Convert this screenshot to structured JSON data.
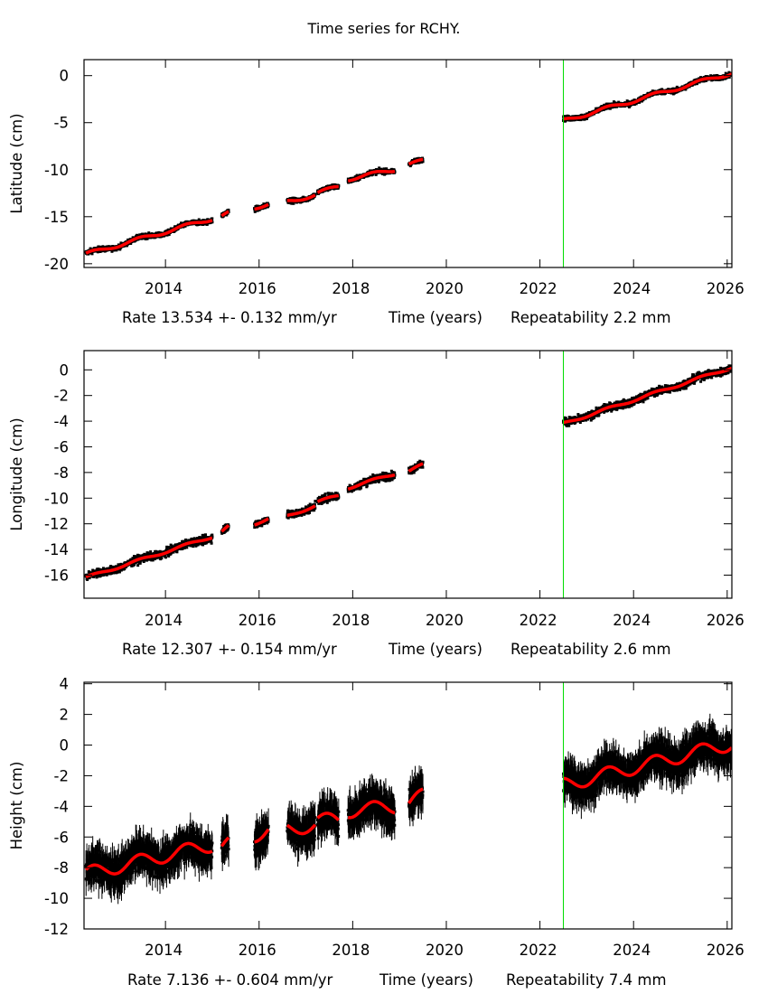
{
  "title": "Time series for RCHY.",
  "colors": {
    "data": "#000000",
    "model": "#ff0000",
    "offset_line": "#00dd00",
    "frame": "#000000"
  },
  "chart_data": [
    {
      "type": "scatter",
      "panel": "latitude",
      "ylabel": "Latitude (cm)",
      "xlabel": "Time (years)",
      "rate_text": "Rate 13.534 +- 0.132 mm/yr",
      "repeat_text": "Repeatability 2.2 mm",
      "xlim": [
        2012.26,
        2026.1
      ],
      "ylim": [
        -20.4,
        1.7
      ],
      "xticks": [
        2014,
        2016,
        2018,
        2020,
        2022,
        2024,
        2026
      ],
      "yticks": [
        0,
        -5,
        -10,
        -15,
        -20
      ],
      "grid": false,
      "offset_epoch": 2022.5,
      "seasonal_amp": 0.2,
      "noise": 0.25,
      "segments": [
        {
          "start": 2012.3,
          "end": 2015.0,
          "y0": -19.0,
          "y1": -15.2
        },
        {
          "start": 2015.2,
          "end": 2015.35,
          "y0": -14.9,
          "y1": -14.6
        },
        {
          "start": 2015.9,
          "end": 2016.2,
          "y0": -14.0,
          "y1": -13.7
        },
        {
          "start": 2016.6,
          "end": 2017.2,
          "y0": -13.4,
          "y1": -12.7
        },
        {
          "start": 2017.25,
          "end": 2017.7,
          "y0": -12.5,
          "y1": -11.8
        },
        {
          "start": 2017.9,
          "end": 2018.9,
          "y0": -11.0,
          "y1": -10.0
        },
        {
          "start": 2019.2,
          "end": 2019.5,
          "y0": -9.4,
          "y1": -9.1
        },
        {
          "start": 2022.5,
          "end": 2026.1,
          "y0": -4.8,
          "y1": 0.3
        }
      ]
    },
    {
      "type": "scatter",
      "panel": "longitude",
      "ylabel": "Longitude (cm)",
      "xlabel": "Time (years)",
      "rate_text": "Rate 12.307 +- 0.154 mm/yr",
      "repeat_text": "Repeatability 2.6 mm",
      "xlim": [
        2012.26,
        2026.1
      ],
      "ylim": [
        -17.8,
        1.5
      ],
      "xticks": [
        2014,
        2016,
        2018,
        2020,
        2022,
        2024,
        2026
      ],
      "yticks": [
        0,
        -2,
        -4,
        -6,
        -8,
        -10,
        -12,
        -14,
        -16
      ],
      "grid": false,
      "offset_epoch": 2022.5,
      "seasonal_amp": 0.1,
      "noise": 0.3,
      "segments": [
        {
          "start": 2012.3,
          "end": 2015.0,
          "y0": -16.2,
          "y1": -13.0
        },
        {
          "start": 2015.2,
          "end": 2015.35,
          "y0": -12.6,
          "y1": -12.2
        },
        {
          "start": 2015.9,
          "end": 2016.2,
          "y0": -12.0,
          "y1": -11.6
        },
        {
          "start": 2016.6,
          "end": 2017.2,
          "y0": -11.4,
          "y1": -10.6
        },
        {
          "start": 2017.25,
          "end": 2017.7,
          "y0": -10.3,
          "y1": -9.8
        },
        {
          "start": 2017.9,
          "end": 2018.9,
          "y0": -9.2,
          "y1": -8.1
        },
        {
          "start": 2019.2,
          "end": 2019.5,
          "y0": -7.9,
          "y1": -7.4
        },
        {
          "start": 2022.5,
          "end": 2026.1,
          "y0": -4.2,
          "y1": 0.2
        }
      ]
    },
    {
      "type": "scatter",
      "panel": "height",
      "ylabel": "Height (cm)",
      "xlabel": "Time (years)",
      "rate_text": "Rate 7.136 +- 0.604 mm/yr",
      "repeat_text": "Repeatability 7.4 mm",
      "xlim": [
        2012.26,
        2026.1
      ],
      "ylim": [
        -12,
        4.1
      ],
      "xticks": [
        2014,
        2016,
        2018,
        2020,
        2022,
        2024,
        2026
      ],
      "yticks": [
        4,
        2,
        0,
        -2,
        -4,
        -6,
        -8,
        -10,
        -12
      ],
      "grid": false,
      "offset_epoch": 2022.5,
      "seasonal_amp": 0.45,
      "noise": 0.9,
      "segments": [
        {
          "start": 2012.3,
          "end": 2015.0,
          "y0": -8.4,
          "y1": -6.5
        },
        {
          "start": 2015.2,
          "end": 2015.35,
          "y0": -6.6,
          "y1": -6.4
        },
        {
          "start": 2015.9,
          "end": 2016.2,
          "y0": -5.9,
          "y1": -5.5
        },
        {
          "start": 2016.6,
          "end": 2017.2,
          "y0": -5.5,
          "y1": -5.2
        },
        {
          "start": 2017.25,
          "end": 2017.7,
          "y0": -4.9,
          "y1": -4.9
        },
        {
          "start": 2017.9,
          "end": 2018.9,
          "y0": -4.3,
          "y1": -4.0
        },
        {
          "start": 2019.2,
          "end": 2019.5,
          "y0": -3.8,
          "y1": -3.3
        },
        {
          "start": 2022.5,
          "end": 2026.1,
          "y0": -2.6,
          "y1": 0.1
        }
      ]
    }
  ]
}
